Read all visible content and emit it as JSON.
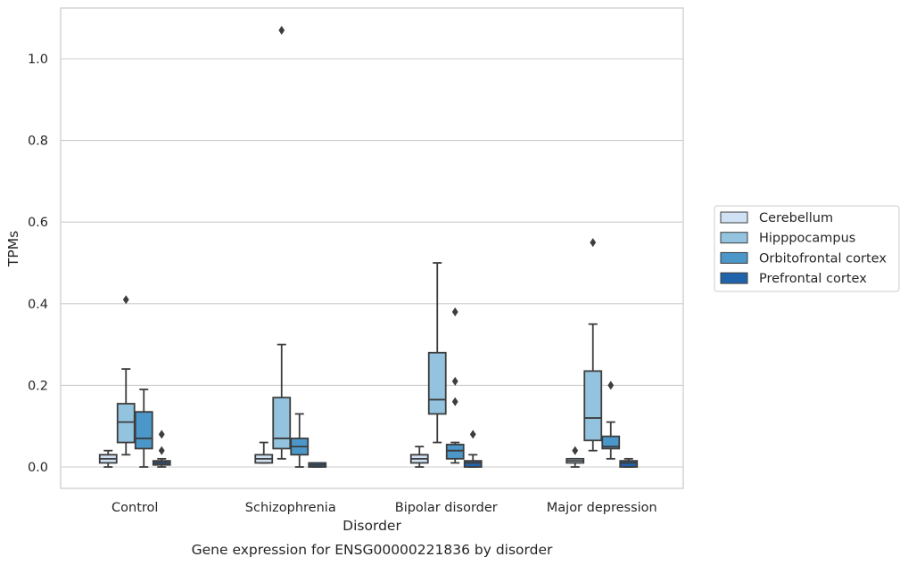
{
  "caption": "Gene expression for ENSG00000221836 by disorder",
  "chart_data": {
    "type": "box",
    "title": "",
    "xlabel": "Disorder",
    "ylabel": "TPMs",
    "ylim": [
      -0.05,
      1.13
    ],
    "yticks": [
      0.0,
      0.2,
      0.4,
      0.6,
      0.8,
      1.0
    ],
    "ytick_labels": [
      "0.0",
      "0.2",
      "0.4",
      "0.6",
      "0.8",
      "1.0"
    ],
    "grid": "horizontal",
    "legend_position": "right",
    "categories": [
      "Control",
      "Schizophrenia",
      "Bipolar disorder",
      "Major depression"
    ],
    "series": [
      {
        "name": "Cerebellum",
        "color": "#cfe1f2",
        "boxes": [
          {
            "whislo": 0.0,
            "q1": 0.01,
            "med": 0.02,
            "q3": 0.03,
            "whishi": 0.04,
            "fliers": []
          },
          {
            "whislo": 0.01,
            "q1": 0.01,
            "med": 0.02,
            "q3": 0.03,
            "whishi": 0.06,
            "fliers": []
          },
          {
            "whislo": 0.0,
            "q1": 0.01,
            "med": 0.02,
            "q3": 0.03,
            "whishi": 0.05,
            "fliers": []
          },
          {
            "whislo": 0.0,
            "q1": 0.01,
            "med": 0.015,
            "q3": 0.02,
            "whishi": 0.02,
            "fliers": [
              0.04
            ]
          }
        ]
      },
      {
        "name": "Hipppocampus",
        "color": "#93c3df",
        "boxes": [
          {
            "whislo": 0.03,
            "q1": 0.06,
            "med": 0.11,
            "q3": 0.155,
            "whishi": 0.24,
            "fliers": [
              0.41
            ]
          },
          {
            "whislo": 0.02,
            "q1": 0.045,
            "med": 0.07,
            "q3": 0.17,
            "whishi": 0.3,
            "fliers": [
              1.07
            ]
          },
          {
            "whislo": 0.06,
            "q1": 0.13,
            "med": 0.165,
            "q3": 0.28,
            "whishi": 0.5,
            "fliers": []
          },
          {
            "whislo": 0.04,
            "q1": 0.065,
            "med": 0.12,
            "q3": 0.235,
            "whishi": 0.35,
            "fliers": [
              0.55
            ]
          }
        ]
      },
      {
        "name": "Orbitofrontal cortex",
        "color": "#4b97c9",
        "boxes": [
          {
            "whislo": 0.0,
            "q1": 0.045,
            "med": 0.07,
            "q3": 0.135,
            "whishi": 0.19,
            "fliers": []
          },
          {
            "whislo": 0.0,
            "q1": 0.03,
            "med": 0.05,
            "q3": 0.07,
            "whishi": 0.13,
            "fliers": []
          },
          {
            "whislo": 0.01,
            "q1": 0.02,
            "med": 0.04,
            "q3": 0.055,
            "whishi": 0.06,
            "fliers": [
              0.38,
              0.21,
              0.16
            ]
          },
          {
            "whislo": 0.02,
            "q1": 0.045,
            "med": 0.05,
            "q3": 0.075,
            "whishi": 0.11,
            "fliers": [
              0.2
            ]
          }
        ]
      },
      {
        "name": "Prefrontal cortex",
        "color": "#2163aa",
        "boxes": [
          {
            "whislo": 0.0,
            "q1": 0.005,
            "med": 0.01,
            "q3": 0.015,
            "whishi": 0.02,
            "fliers": [
              0.08,
              0.04
            ]
          },
          {
            "whislo": 0.0,
            "q1": 0.0,
            "med": 0.005,
            "q3": 0.01,
            "whishi": 0.01,
            "fliers": []
          },
          {
            "whislo": 0.0,
            "q1": 0.0,
            "med": 0.01,
            "q3": 0.015,
            "whishi": 0.03,
            "fliers": [
              0.08
            ]
          },
          {
            "whislo": 0.0,
            "q1": 0.0,
            "med": 0.01,
            "q3": 0.015,
            "whishi": 0.02,
            "fliers": []
          }
        ]
      }
    ]
  }
}
